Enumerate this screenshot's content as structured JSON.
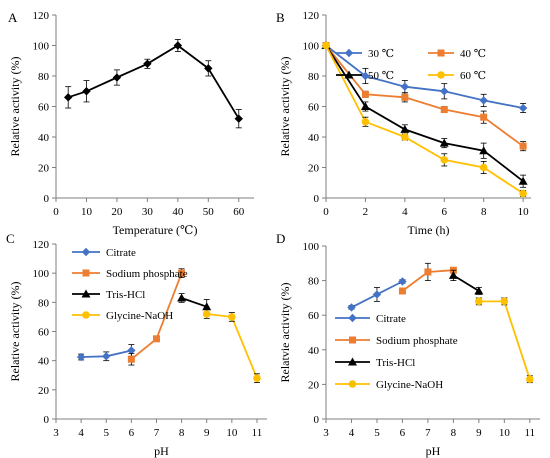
{
  "chart_data": [
    {
      "panel": "A",
      "type": "line",
      "xlabel": "Temperature (℃)",
      "ylabel": "Relative activity (%)",
      "xlim": [
        0,
        65
      ],
      "ylim": [
        0,
        120
      ],
      "xticks": [
        0,
        10,
        20,
        30,
        40,
        50,
        60
      ],
      "yticks": [
        0,
        20,
        40,
        60,
        80,
        100,
        120
      ],
      "legend": "none",
      "series": [
        {
          "color": "#000000",
          "marker": "diamond",
          "x": [
            4,
            10,
            20,
            30,
            40,
            50,
            60
          ],
          "y": [
            66,
            70,
            79,
            88,
            100,
            85,
            52
          ],
          "err": [
            7,
            7,
            5,
            3,
            4,
            5,
            6
          ]
        }
      ]
    },
    {
      "panel": "B",
      "type": "line",
      "xlabel": "Time (h)",
      "ylabel": "Relative activity (%)",
      "xlim": [
        0,
        10.4
      ],
      "ylim": [
        0,
        120
      ],
      "xticks": [
        0,
        2,
        4,
        6,
        8,
        10
      ],
      "yticks": [
        0,
        20,
        40,
        60,
        80,
        100,
        120
      ],
      "legend": "top",
      "series": [
        {
          "name": "30 ℃",
          "color": "#4472C4",
          "marker": "diamond",
          "x": [
            0,
            2,
            4,
            6,
            8,
            10
          ],
          "y": [
            100,
            80,
            73,
            70,
            64,
            59
          ],
          "err": [
            0,
            5,
            4,
            5,
            4,
            3
          ]
        },
        {
          "name": "40 ℃",
          "color": "#ED7D31",
          "marker": "square",
          "x": [
            0,
            2,
            4,
            6,
            8,
            10
          ],
          "y": [
            100,
            68,
            66,
            58,
            53,
            34
          ],
          "err": [
            0,
            2,
            3,
            2,
            4,
            3
          ]
        },
        {
          "name": "50 ℃",
          "color": "#000000",
          "marker": "triangle",
          "x": [
            0,
            2,
            4,
            6,
            8,
            10
          ],
          "y": [
            100,
            60,
            45,
            36,
            31,
            11
          ],
          "err": [
            0,
            3,
            3,
            3,
            5,
            4
          ]
        },
        {
          "name": "60 ℃",
          "color": "#FFC000",
          "marker": "circle",
          "x": [
            0,
            2,
            4,
            6,
            8,
            10
          ],
          "y": [
            100,
            50,
            40,
            25,
            20,
            3
          ],
          "err": [
            0,
            3,
            2,
            4,
            4,
            2
          ]
        }
      ]
    },
    {
      "panel": "C",
      "type": "line",
      "xlabel": "pH",
      "ylabel": "Relative activity (%)",
      "xlim": [
        3,
        11.4
      ],
      "ylim": [
        0,
        120
      ],
      "xticks": [
        3,
        4,
        5,
        6,
        7,
        8,
        9,
        10,
        11
      ],
      "yticks": [
        0,
        20,
        40,
        60,
        80,
        100,
        120
      ],
      "legend": "top-left",
      "series": [
        {
          "name": "Citrate",
          "color": "#4472C4",
          "marker": "diamond",
          "x": [
            4,
            5,
            6
          ],
          "y": [
            42.5,
            43,
            47
          ],
          "err": [
            2,
            3,
            4
          ]
        },
        {
          "name": "Sodium phosphate",
          "color": "#ED7D31",
          "marker": "square",
          "x": [
            6,
            7,
            8
          ],
          "y": [
            41,
            55,
            100
          ],
          "err": [
            4,
            1,
            3
          ]
        },
        {
          "name": "Tris-HCl",
          "color": "#000000",
          "marker": "triangle",
          "x": [
            8,
            9
          ],
          "y": [
            83,
            77
          ],
          "err": [
            3,
            5
          ]
        },
        {
          "name": "Glycine-NaOH",
          "color": "#FFC000",
          "marker": "circle",
          "x": [
            9,
            10,
            11
          ],
          "y": [
            72,
            70,
            28
          ],
          "err": [
            3,
            3,
            3
          ]
        }
      ]
    },
    {
      "panel": "D",
      "type": "line",
      "xlabel": "pH",
      "ylabel": "Relatvie activity (%)",
      "xlim": [
        3,
        11.4
      ],
      "ylim": [
        0,
        100
      ],
      "xticks": [
        3,
        4,
        5,
        6,
        7,
        8,
        9,
        10,
        11
      ],
      "yticks": [
        0,
        20,
        40,
        60,
        80,
        100
      ],
      "legend": "bottom-left",
      "series": [
        {
          "name": "Citrate",
          "color": "#4472C4",
          "marker": "diamond",
          "x": [
            4,
            5,
            6
          ],
          "y": [
            64.5,
            72,
            79.5
          ],
          "err": [
            1,
            4,
            1
          ]
        },
        {
          "name": "Sodium phosphate",
          "color": "#ED7D31",
          "marker": "square",
          "x": [
            6,
            7,
            8
          ],
          "y": [
            74,
            85,
            86
          ],
          "err": [
            1,
            5,
            1
          ]
        },
        {
          "name": "Tris-HCl",
          "color": "#000000",
          "marker": "triangle",
          "x": [
            8,
            9
          ],
          "y": [
            83,
            74
          ],
          "err": [
            3,
            2
          ]
        },
        {
          "name": "Glycine-NaOH",
          "color": "#FFC000",
          "marker": "circle",
          "x": [
            9,
            10,
            11
          ],
          "y": [
            68,
            68,
            23
          ],
          "err": [
            2,
            2,
            2
          ]
        }
      ]
    }
  ]
}
